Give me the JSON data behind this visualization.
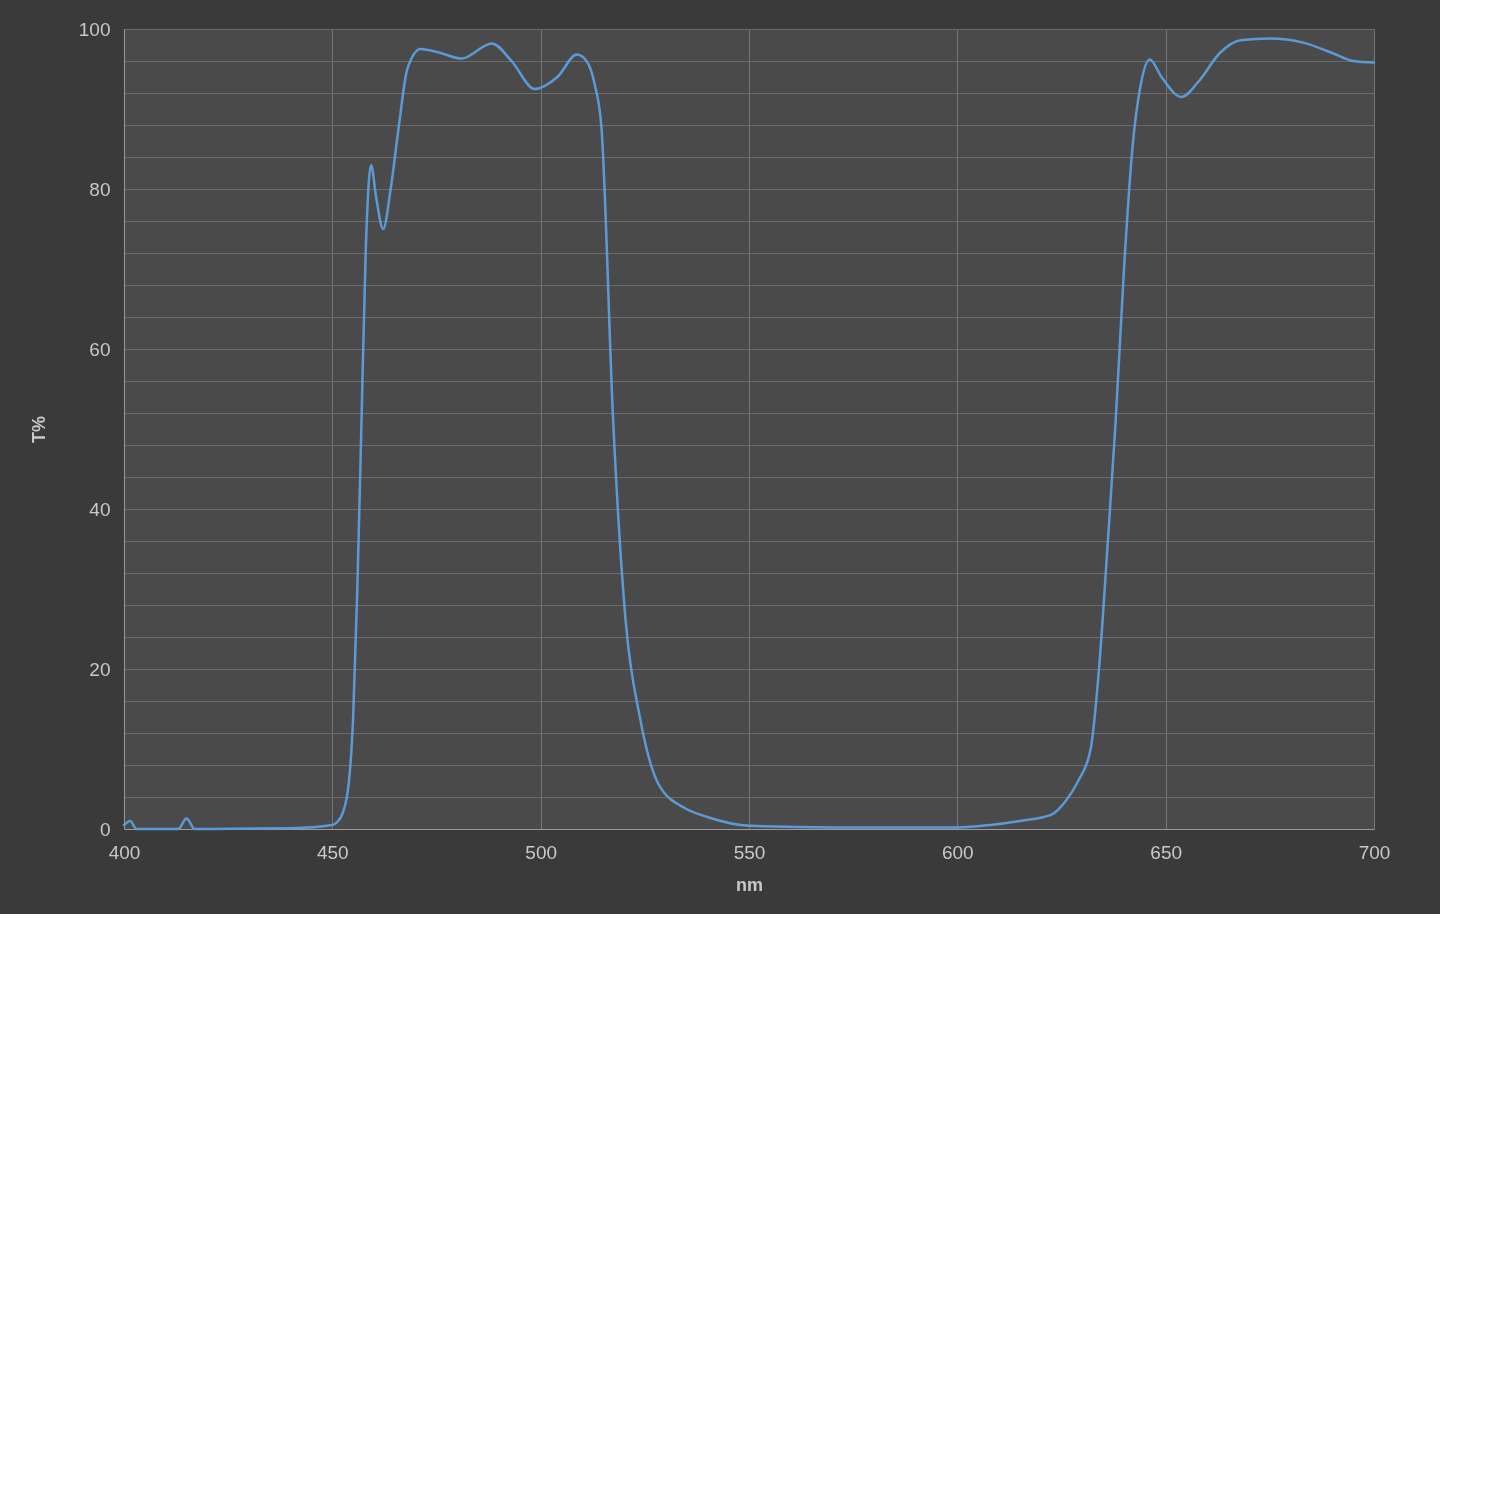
{
  "chart_data": {
    "type": "line",
    "xlabel": "nm",
    "ylabel": "T%",
    "xlim": [
      400,
      700
    ],
    "xticks": [
      400,
      450,
      500,
      550,
      600,
      650,
      700
    ],
    "ylim": [
      0,
      100
    ],
    "yticks": [
      0,
      {
        "value": 4,
        "label": null
      },
      {
        "value": 8,
        "label": null
      },
      {
        "value": 12,
        "label": null
      },
      {
        "value": 16,
        "label": null
      },
      20,
      {
        "value": 24,
        "label": null
      },
      {
        "value": 28,
        "label": null
      },
      {
        "value": 32,
        "label": null
      },
      {
        "value": 36,
        "label": null
      },
      40,
      {
        "value": 44,
        "label": null
      },
      {
        "value": 48,
        "label": null
      },
      {
        "value": 52,
        "label": null
      },
      {
        "value": 56,
        "label": null
      },
      60,
      {
        "value": 64,
        "label": null
      },
      {
        "value": 68,
        "label": null
      },
      {
        "value": 72,
        "label": null
      },
      {
        "value": 76,
        "label": null
      },
      80,
      {
        "value": 84,
        "label": null
      },
      {
        "value": 88,
        "label": null
      },
      {
        "value": 92,
        "label": null
      },
      {
        "value": 96,
        "label": null
      },
      100
    ],
    "grid": true,
    "marker": "none",
    "line_style": "solid",
    "series": [
      {
        "color": "#5b9bd5",
        "x": [
          400,
          401.5,
          403,
          413,
          415,
          417,
          440,
          450,
          451,
          452.5,
          454,
          455,
          456,
          457,
          458,
          459.3,
          460.5,
          462.2,
          464,
          466,
          468,
          471.2,
          476,
          481,
          488.3,
          493,
          498.6,
          504,
          508.7,
          511,
          513,
          514.6,
          517.4,
          520.4,
          523.8,
          528.4,
          535,
          540,
          550,
          570,
          600,
          608,
          615,
          622.6,
          626,
          629,
          632,
          634,
          636,
          638,
          640,
          642,
          644,
          646.2,
          649,
          653.8,
          658,
          663,
          668,
          675,
          683,
          690,
          695,
          700
        ],
        "values": [
          0.5,
          1.0,
          0,
          0,
          1.3,
          0,
          0.1,
          0.5,
          0.8,
          2,
          6,
          14,
          30,
          51,
          72,
          83,
          79,
          75,
          80,
          88,
          95,
          97.5,
          97,
          96.3,
          98.2,
          96,
          92.5,
          94,
          96.8,
          96,
          93,
          87.6,
          51,
          26,
          14,
          5.5,
          2.5,
          1.5,
          0.4,
          0.2,
          0.2,
          0.5,
          1,
          1.8,
          3.5,
          6,
          10,
          20,
          35,
          51,
          70,
          85,
          93,
          96.2,
          94,
          91.5,
          93.5,
          97,
          98.6,
          98.8,
          98.3,
          97,
          96,
          95.8
        ]
      }
    ]
  }
}
